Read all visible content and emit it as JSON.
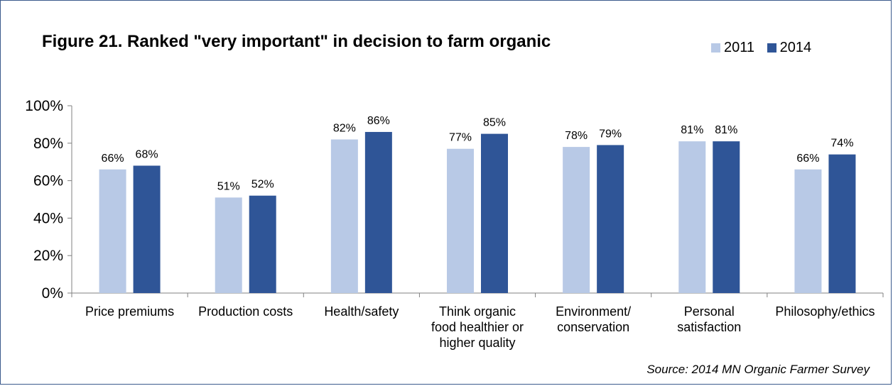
{
  "title": "Figure 21. Ranked \"very important\" in decision to farm organic",
  "source": "Source: 2014 MN Organic Farmer Survey",
  "colors": {
    "2011": "#b8c9e6",
    "2014": "#2f5597"
  },
  "chart_data": {
    "type": "bar",
    "title": "Figure 21. Ranked \"very important\" in decision to farm organic",
    "categories": [
      [
        "Price premiums"
      ],
      [
        "Production costs"
      ],
      [
        "Health/safety"
      ],
      [
        "Think organic",
        "food healthier or",
        "higher quality"
      ],
      [
        "Environment/",
        "conservation"
      ],
      [
        "Personal",
        "satisfaction"
      ],
      [
        "Philosophy/ethics"
      ]
    ],
    "series": [
      {
        "name": "2011",
        "values": [
          66,
          51,
          82,
          77,
          78,
          81,
          66
        ],
        "labels": [
          "66%",
          "51%",
          "82%",
          "77%",
          "78%",
          "81%",
          "66%"
        ]
      },
      {
        "name": "2014",
        "values": [
          68,
          52,
          86,
          85,
          79,
          81,
          74
        ],
        "labels": [
          "68%",
          "52%",
          "86%",
          "85%",
          "79%",
          "81%",
          "74%"
        ]
      }
    ],
    "yticks": [
      "0%",
      "20%",
      "40%",
      "60%",
      "80%",
      "100%"
    ],
    "ylim": [
      0,
      100
    ],
    "legend_position": "top-right",
    "grid": false
  }
}
